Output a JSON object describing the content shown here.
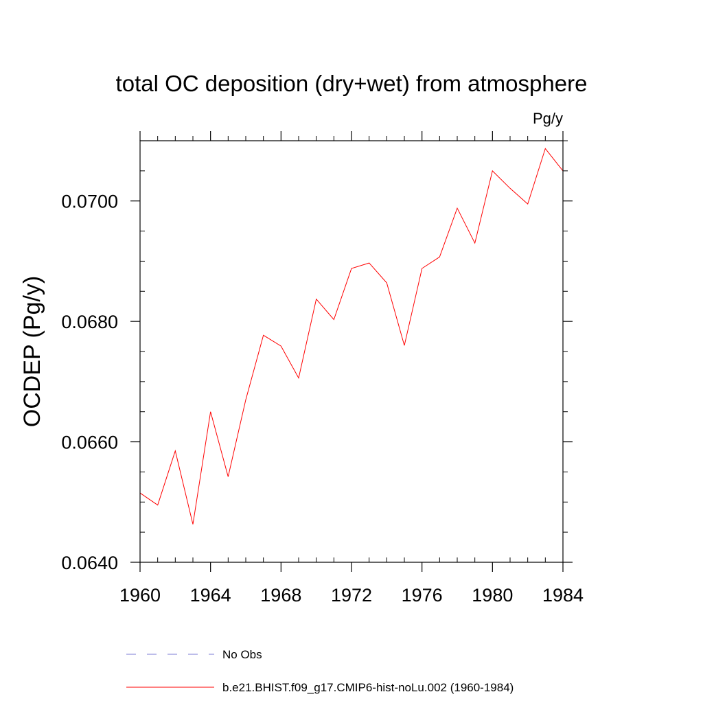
{
  "chart_data": {
    "type": "line",
    "title": "total OC deposition (dry+wet) from atmosphere",
    "units_label": "Pg/y",
    "xlabel": "",
    "ylabel": "OCDEP  (Pg/y)",
    "xlim": [
      1960,
      1984
    ],
    "ylim": [
      0.064,
      0.071
    ],
    "x_ticks": [
      1960,
      1964,
      1968,
      1972,
      1976,
      1980,
      1984
    ],
    "x_tick_labels": [
      "1960",
      "1964",
      "1968",
      "1972",
      "1976",
      "1980",
      "1984"
    ],
    "y_ticks": [
      0.064,
      0.066,
      0.068,
      0.07
    ],
    "y_tick_labels": [
      "0.0640",
      "0.0660",
      "0.0680",
      "0.0700"
    ],
    "y_minor_step": 0.0005,
    "x_minor_step": 1,
    "grid": false,
    "legend_position": "bottom",
    "series": [
      {
        "name": "b.e21.BHIST.f09_g17.CMIP6-hist-noLu.002 (1960-1984)",
        "color": "#ff0000",
        "style": "solid",
        "x": [
          1960,
          1961,
          1962,
          1963,
          1964,
          1965,
          1966,
          1967,
          1968,
          1969,
          1970,
          1971,
          1972,
          1973,
          1974,
          1975,
          1976,
          1977,
          1978,
          1979,
          1980,
          1981,
          1982,
          1983,
          1984
        ],
        "y": [
          0.06515,
          0.06495,
          0.06585,
          0.06463,
          0.0665,
          0.06542,
          0.0667,
          0.06777,
          0.06759,
          0.06706,
          0.06837,
          0.06803,
          0.06888,
          0.06897,
          0.06864,
          0.0676,
          0.06888,
          0.06907,
          0.06988,
          0.0693,
          0.0705,
          0.07021,
          0.06995,
          0.07087,
          0.0705
        ]
      }
    ],
    "legend": [
      {
        "label": "No Obs",
        "color": "#7b7bd6",
        "style": "dashed"
      },
      {
        "label": "b.e21.BHIST.f09_g17.CMIP6-hist-noLu.002 (1960-1984)",
        "color": "#ff0000",
        "style": "solid"
      }
    ]
  }
}
